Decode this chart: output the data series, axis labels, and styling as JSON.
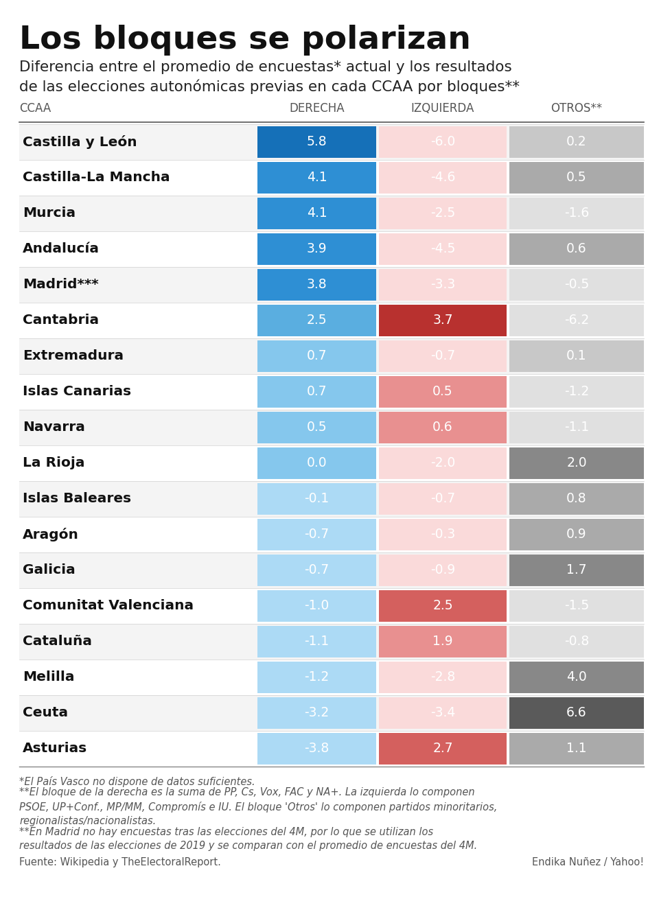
{
  "title": "Los bloques se polarizan",
  "subtitle": "Diferencia entre el promedio de encuestas* actual y los resultados\nde las elecciones autonómicas previas en cada CCAA por bloques**",
  "col_headers": [
    "CCAA",
    "DERECHA",
    "IZQUIERDA",
    "OTROS**"
  ],
  "regions": [
    "Castilla y León",
    "Castilla-La Mancha",
    "Murcia",
    "Andalucía",
    "Madrid***",
    "Cantabria",
    "Extremadura",
    "Islas Canarias",
    "Navarra",
    "La Rioja",
    "Islas Baleares",
    "Aragón",
    "Galicia",
    "Comunitat Valenciana",
    "Cataluña",
    "Melilla",
    "Ceuta",
    "Asturias"
  ],
  "derecha": [
    5.8,
    4.1,
    4.1,
    3.9,
    3.8,
    2.5,
    0.7,
    0.7,
    0.5,
    0.0,
    -0.1,
    -0.7,
    -0.7,
    -1.0,
    -1.1,
    -1.2,
    -3.2,
    -3.8
  ],
  "izquierda": [
    -6.0,
    -4.6,
    -2.5,
    -4.5,
    -3.3,
    3.7,
    -0.7,
    0.5,
    0.6,
    -2.0,
    -0.7,
    -0.3,
    -0.9,
    2.5,
    1.9,
    -2.8,
    -3.4,
    2.7
  ],
  "otros": [
    0.2,
    0.5,
    -1.6,
    0.6,
    -0.5,
    -6.2,
    0.1,
    -1.2,
    -1.1,
    2.0,
    0.8,
    0.9,
    1.7,
    -1.5,
    -0.8,
    4.0,
    6.6,
    1.1
  ],
  "footnote1": "*El País Vasco no dispone de datos suficientes.",
  "footnote2": "**El bloque de la derecha es la suma de PP, Cs, Vox, FAC y NA+. La izquierda lo componen\nPSOE, UP+Conf., MP/MM, Compromís e IU. El bloque 'Otros' lo componen partidos minoritarios,\nregionalistas/nacionalistas.",
  "footnote3": "**En Madrid no hay encuestas tras las elecciones del 4M, por lo que se utilizan los\nresultados de las elecciones de 2019 y se comparan con el promedio de encuestas del 4M.",
  "source_left": "Fuente: Wikipedia y TheElectoralReport.",
  "source_right": "Endika Nuñez / Yahoo!",
  "bg_color": "#ffffff",
  "blue_colors": [
    "#1570b8",
    "#2e8fd4",
    "#5aaee0",
    "#85c7ed",
    "#acdaf5"
  ],
  "red_colors": [
    "#b8312f",
    "#d4605e",
    "#e89090",
    "#f2b8b8",
    "#fadada"
  ],
  "gray_colors": [
    "#5a5a5a",
    "#888888",
    "#aaaaaa",
    "#c8c8c8",
    "#e0e0e0"
  ]
}
